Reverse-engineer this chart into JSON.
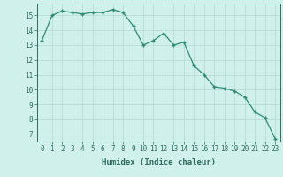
{
  "x": [
    0,
    1,
    2,
    3,
    4,
    5,
    6,
    7,
    8,
    9,
    10,
    11,
    12,
    13,
    14,
    15,
    16,
    17,
    18,
    19,
    20,
    21,
    22,
    23
  ],
  "y": [
    13.3,
    15.0,
    15.3,
    15.2,
    15.1,
    15.2,
    15.2,
    15.4,
    15.2,
    14.3,
    13.0,
    13.3,
    13.8,
    13.0,
    13.2,
    11.6,
    11.0,
    10.2,
    10.1,
    9.9,
    9.5,
    8.5,
    8.1,
    6.7
  ],
  "line_color": "#2e8b74",
  "marker_color": "#2e8b74",
  "bg_color": "#cff0eb",
  "grid_color": "#b8ddd8",
  "xlabel": "Humidex (Indice chaleur)",
  "ylim": [
    6.5,
    15.8
  ],
  "xlim": [
    -0.5,
    23.5
  ],
  "yticks": [
    7,
    8,
    9,
    10,
    11,
    12,
    13,
    14,
    15
  ],
  "xticks": [
    0,
    1,
    2,
    3,
    4,
    5,
    6,
    7,
    8,
    9,
    10,
    11,
    12,
    13,
    14,
    15,
    16,
    17,
    18,
    19,
    20,
    21,
    22,
    23
  ],
  "tick_color": "#2e6b5e",
  "label_fontsize": 5.5,
  "xlabel_fontsize": 6.5
}
